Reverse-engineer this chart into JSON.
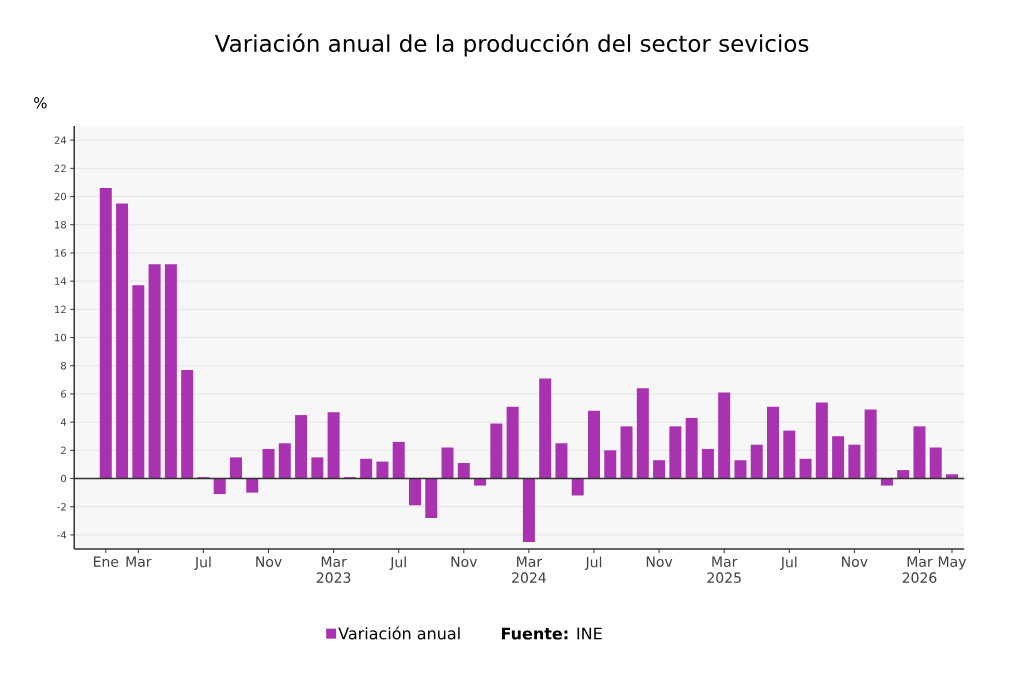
{
  "chart_data": {
    "type": "bar",
    "title": "Variación anual de la producción del sector sevicios",
    "ylabel": "%",
    "categories": [
      "Ene",
      null,
      "Mar",
      null,
      null,
      null,
      "Jul",
      null,
      null,
      null,
      "Nov",
      null,
      null,
      null,
      "Mar 2023",
      null,
      null,
      null,
      "Jul",
      null,
      null,
      null,
      "Nov",
      null,
      null,
      null,
      "Mar 2024",
      null,
      null,
      null,
      "Jul",
      null,
      null,
      null,
      "Nov",
      null,
      null,
      null,
      "Mar 2025",
      null,
      null,
      null,
      "Jul",
      null,
      null,
      null,
      "Nov",
      null,
      null,
      null,
      "Mar 2026",
      null,
      "May"
    ],
    "series": [
      {
        "name": "Variación anual",
        "color": "#a832b0",
        "values": [
          20.6,
          19.5,
          13.7,
          15.2,
          15.2,
          7.7,
          0.1,
          -1.1,
          1.5,
          -1.0,
          2.1,
          2.5,
          4.5,
          1.5,
          4.7,
          0.1,
          1.4,
          1.2,
          2.6,
          -1.9,
          -2.8,
          2.2,
          1.1,
          -0.5,
          3.9,
          5.1,
          -4.5,
          7.1,
          2.5,
          -1.2,
          4.8,
          2.0,
          3.7,
          6.4,
          1.3,
          3.7,
          4.3,
          2.1,
          6.1,
          1.3,
          2.4,
          5.1,
          3.4,
          1.4,
          5.4,
          3.0,
          2.4,
          4.9,
          -0.5,
          0.6,
          3.7,
          2.2,
          0.3
        ]
      }
    ],
    "ylim": [
      -5,
      25
    ],
    "yticks": [
      -4,
      -2,
      0,
      2,
      4,
      6,
      8,
      10,
      12,
      14,
      16,
      18,
      20,
      22,
      24
    ],
    "grid": "y",
    "legend": "bottom",
    "ref_lines": [
      {
        "axis": "y",
        "value": 0,
        "color": "#333333"
      }
    ],
    "annotations": [
      "**Fuente:** INE"
    ]
  }
}
